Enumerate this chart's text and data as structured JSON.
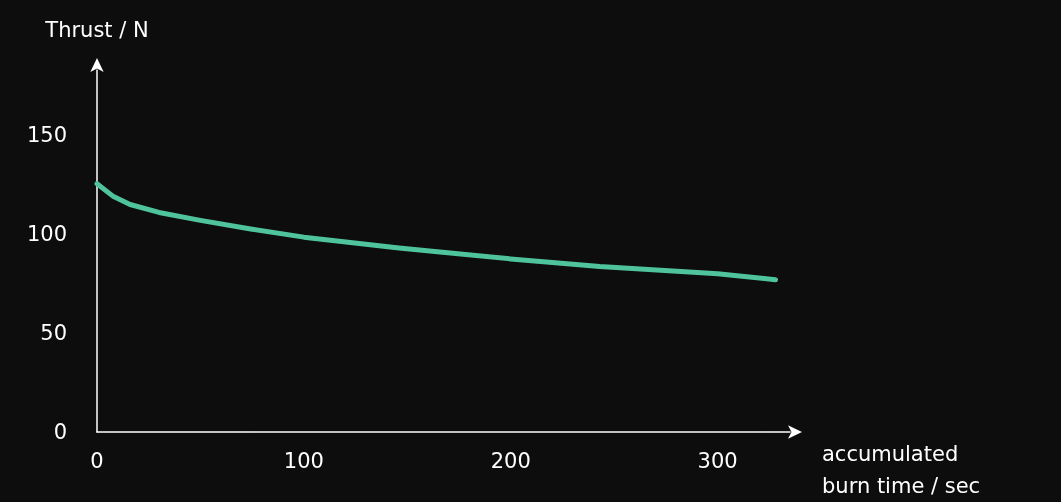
{
  "chart_data": {
    "type": "line",
    "xlabel": "accumulated\nburn time / sec",
    "ylabel": "Thrust / N",
    "x": [
      0,
      8,
      16,
      30,
      50,
      75,
      100,
      146,
      200,
      243,
      300,
      328
    ],
    "series": [
      {
        "color": "#4fc39b",
        "values": [
          125.5,
          119,
          115,
          111,
          107,
          102.5,
          98.5,
          93,
          87.5,
          83.7,
          80,
          77
        ]
      }
    ],
    "xlim": [
      0,
      335
    ],
    "ylim": [
      0,
      183
    ],
    "xticks": [
      0,
      100,
      200,
      300
    ],
    "yticks": [
      0,
      50,
      100,
      150
    ],
    "grid": false,
    "marker": "none",
    "line_style": "solid"
  }
}
